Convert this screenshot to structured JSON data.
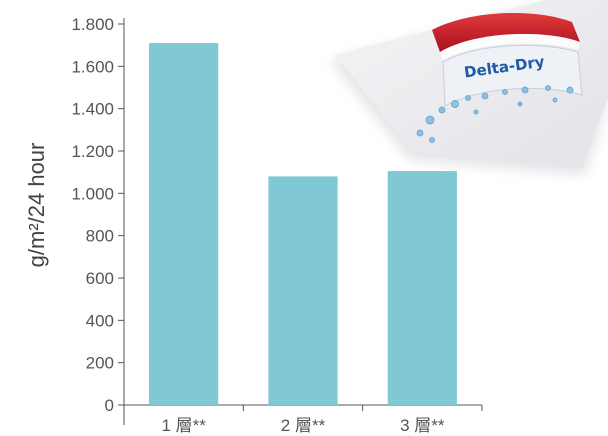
{
  "chart_data": {
    "type": "bar",
    "categories": [
      "1 層**",
      "2 層**",
      "3 層**"
    ],
    "values": [
      1710,
      1080,
      1105
    ],
    "ylabel": "g/m²/24 hour",
    "xlabel": "",
    "ylim": [
      0,
      1800
    ],
    "yticks": [
      0,
      200,
      400,
      600,
      800,
      1000,
      1200,
      1400,
      1600,
      1800
    ],
    "ytick_labels": [
      "0",
      "200",
      "400",
      "600",
      "800",
      "1.000",
      "1.200",
      "1.400",
      "1.600",
      "1.800"
    ],
    "grid": false,
    "bar_color": "#7fc8d4",
    "axis_color": "#555555"
  },
  "logo": {
    "text": "Delta-Dry",
    "fabric_color": "#c8102e",
    "text_color": "#1e5aa8"
  }
}
